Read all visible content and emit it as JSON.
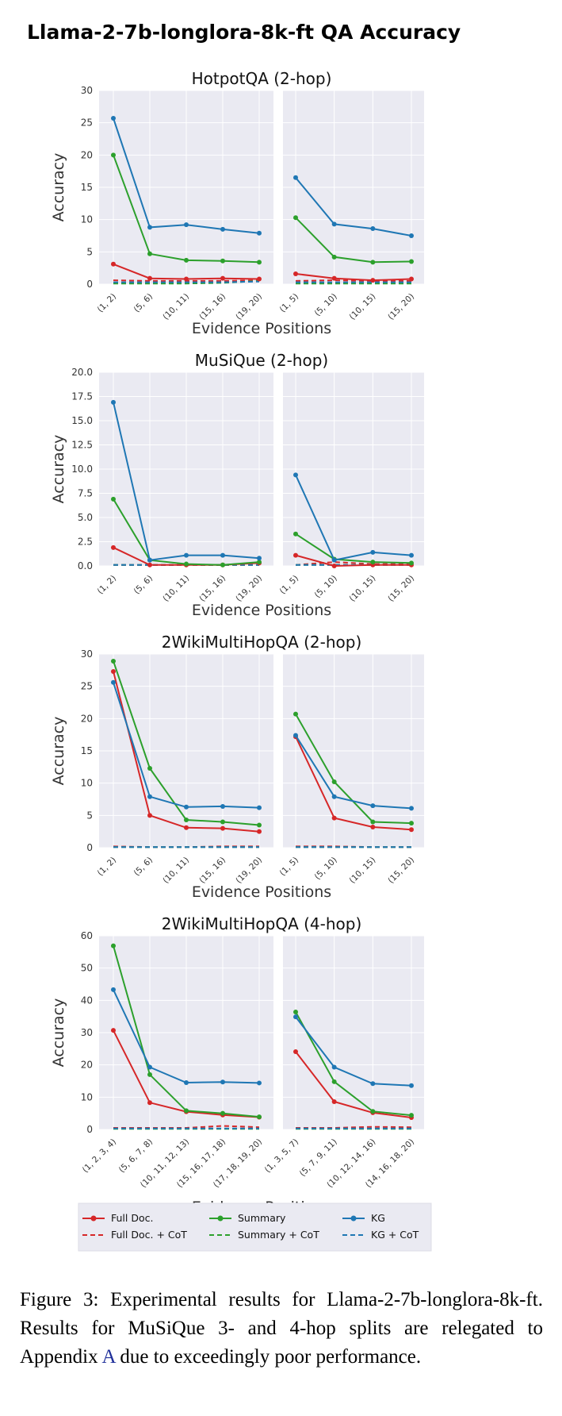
{
  "title": "Llama-2-7b-longlora-8k-ft QA Accuracy",
  "caption": {
    "text_before": "Figure 3: Experimental results for Llama-2-7b-longlora-8k-ft.  Results for MuSiQue 3- and 4-hop splits are relegated to Appendix ",
    "link": "A",
    "text_after": " due to exceedingly poor performance."
  },
  "legend": {
    "placement": "bottom",
    "entries": [
      {
        "label": "Full Doc.",
        "color": "#d62728",
        "style": "solid"
      },
      {
        "label": "Summary",
        "color": "#2ca02c",
        "style": "solid"
      },
      {
        "label": "KG",
        "color": "#1f77b4",
        "style": "solid"
      },
      {
        "label": "Full Doc. + CoT",
        "color": "#d62728",
        "style": "dashed"
      },
      {
        "label": "Summary + CoT",
        "color": "#2ca02c",
        "style": "dashed"
      },
      {
        "label": "KG + CoT",
        "color": "#1f77b4",
        "style": "dashed"
      }
    ]
  },
  "chart_data": [
    {
      "type": "line",
      "title": "HotpotQA (2-hop)",
      "ylabel": "Accuracy",
      "xlabel": "Evidence Positions",
      "ylim": [
        0,
        30
      ],
      "yticks": [
        0,
        5,
        10,
        15,
        20,
        25,
        30
      ],
      "grid": true,
      "panels": [
        {
          "categories": [
            "(1, 2)",
            "(5, 6)",
            "(10, 11)",
            "(15, 16)",
            "(19, 20)"
          ],
          "series": [
            {
              "legend": "Full Doc.",
              "values": [
                3.1,
                0.9,
                0.8,
                0.9,
                0.8
              ]
            },
            {
              "legend": "Summary",
              "values": [
                20.0,
                4.7,
                3.7,
                3.6,
                3.4
              ]
            },
            {
              "legend": "KG",
              "values": [
                25.7,
                8.8,
                9.2,
                8.5,
                7.9
              ]
            },
            {
              "legend": "Full Doc. + CoT",
              "values": [
                0.6,
                0.5,
                0.5,
                0.5,
                0.6
              ]
            },
            {
              "legend": "Summary + CoT",
              "values": [
                0.1,
                0.1,
                0.1,
                0.2,
                0.5
              ]
            },
            {
              "legend": "KG + CoT",
              "values": [
                0.3,
                0.3,
                0.3,
                0.3,
                0.4
              ]
            }
          ]
        },
        {
          "categories": [
            "(1, 5)",
            "(5, 10)",
            "(10, 15)",
            "(15, 20)"
          ],
          "series": [
            {
              "legend": "Full Doc.",
              "values": [
                1.6,
                0.9,
                0.6,
                0.8
              ]
            },
            {
              "legend": "Summary",
              "values": [
                10.3,
                4.2,
                3.4,
                3.5
              ]
            },
            {
              "legend": "KG",
              "values": [
                16.5,
                9.3,
                8.6,
                7.5
              ]
            },
            {
              "legend": "Full Doc. + CoT",
              "values": [
                0.5,
                0.6,
                0.5,
                0.5
              ]
            },
            {
              "legend": "Summary + CoT",
              "values": [
                0.1,
                0.1,
                0.1,
                0.1
              ]
            },
            {
              "legend": "KG + CoT",
              "values": [
                0.3,
                0.3,
                0.3,
                0.3
              ]
            }
          ]
        }
      ]
    },
    {
      "type": "line",
      "title": "MuSiQue (2-hop)",
      "ylabel": "Accuracy",
      "xlabel": "Evidence Positions",
      "ylim": [
        0,
        20
      ],
      "yticks": [
        0.0,
        2.5,
        5.0,
        7.5,
        10.0,
        12.5,
        15.0,
        17.5,
        20.0
      ],
      "grid": true,
      "panels": [
        {
          "categories": [
            "(1, 2)",
            "(5, 6)",
            "(10, 11)",
            "(15, 16)",
            "(19, 20)"
          ],
          "series": [
            {
              "legend": "Full Doc.",
              "values": [
                1.9,
                0.1,
                0.1,
                0.1,
                0.3
              ]
            },
            {
              "legend": "Summary",
              "values": [
                6.9,
                0.6,
                0.2,
                0.1,
                0.4
              ]
            },
            {
              "legend": "KG",
              "values": [
                16.9,
                0.6,
                1.1,
                1.1,
                0.8
              ]
            },
            {
              "legend": "Full Doc. + CoT",
              "values": [
                0.1,
                0.1,
                0.1,
                0.1,
                0.1
              ]
            },
            {
              "legend": "Summary + CoT",
              "values": [
                0.1,
                0.1,
                0.1,
                0.1,
                0.1
              ]
            },
            {
              "legend": "KG + CoT",
              "values": [
                0.1,
                0.1,
                0.1,
                0.1,
                0.1
              ]
            }
          ]
        },
        {
          "categories": [
            "(1, 5)",
            "(5, 10)",
            "(10, 15)",
            "(15, 20)"
          ],
          "series": [
            {
              "legend": "Full Doc.",
              "values": [
                1.1,
                0.0,
                0.1,
                0.1
              ]
            },
            {
              "legend": "Summary",
              "values": [
                3.3,
                0.7,
                0.4,
                0.3
              ]
            },
            {
              "legend": "KG",
              "values": [
                9.4,
                0.6,
                1.4,
                1.1
              ]
            },
            {
              "legend": "Full Doc. + CoT",
              "values": [
                0.1,
                0.4,
                0.2,
                0.2
              ]
            },
            {
              "legend": "Summary + CoT",
              "values": [
                0.1,
                0.1,
                0.1,
                0.1
              ]
            },
            {
              "legend": "KG + CoT",
              "values": [
                0.1,
                0.1,
                0.1,
                0.1
              ]
            }
          ]
        }
      ]
    },
    {
      "type": "line",
      "title": "2WikiMultiHopQA (2-hop)",
      "ylabel": "Accuracy",
      "xlabel": "Evidence Positions",
      "ylim": [
        0,
        30
      ],
      "yticks": [
        0,
        5,
        10,
        15,
        20,
        25,
        30
      ],
      "grid": true,
      "panels": [
        {
          "categories": [
            "(1, 2)",
            "(5, 6)",
            "(10, 11)",
            "(15, 16)",
            "(19, 20)"
          ],
          "series": [
            {
              "legend": "Full Doc.",
              "values": [
                27.3,
                5.0,
                3.1,
                3.0,
                2.5
              ]
            },
            {
              "legend": "Summary",
              "values": [
                28.9,
                12.3,
                4.3,
                4.0,
                3.5
              ]
            },
            {
              "legend": "KG",
              "values": [
                25.6,
                7.9,
                6.3,
                6.4,
                6.2
              ]
            },
            {
              "legend": "Full Doc. + CoT",
              "values": [
                0.2,
                0.1,
                0.1,
                0.2,
                0.2
              ]
            },
            {
              "legend": "Summary + CoT",
              "values": [
                0.1,
                0.1,
                0.1,
                0.1,
                0.1
              ]
            },
            {
              "legend": "KG + CoT",
              "values": [
                0.1,
                0.1,
                0.1,
                0.1,
                0.1
              ]
            }
          ]
        },
        {
          "categories": [
            "(1, 5)",
            "(5, 10)",
            "(10, 15)",
            "(15, 20)"
          ],
          "series": [
            {
              "legend": "Full Doc.",
              "values": [
                17.2,
                4.6,
                3.2,
                2.8
              ]
            },
            {
              "legend": "Summary",
              "values": [
                20.7,
                10.2,
                4.0,
                3.8
              ]
            },
            {
              "legend": "KG",
              "values": [
                17.4,
                7.9,
                6.5,
                6.1
              ]
            },
            {
              "legend": "Full Doc. + CoT",
              "values": [
                0.2,
                0.2,
                0.1,
                0.1
              ]
            },
            {
              "legend": "Summary + CoT",
              "values": [
                0.1,
                0.1,
                0.1,
                0.1
              ]
            },
            {
              "legend": "KG + CoT",
              "values": [
                0.1,
                0.1,
                0.1,
                0.1
              ]
            }
          ]
        }
      ]
    },
    {
      "type": "line",
      "title": "2WikiMultiHopQA (4-hop)",
      "ylabel": "Accuracy",
      "xlabel": "Evidence Positions",
      "ylim": [
        0,
        60
      ],
      "yticks": [
        0,
        10,
        20,
        30,
        40,
        50,
        60
      ],
      "grid": true,
      "panels": [
        {
          "categories": [
            "(1, 2, 3, 4)",
            "(5, 6, 7, 8)",
            "(10, 11, 12, 13)",
            "(15, 16, 17, 18)",
            "(17, 18, 19, 20)"
          ],
          "series": [
            {
              "legend": "Full Doc.",
              "values": [
                30.7,
                8.3,
                5.5,
                4.5,
                3.8
              ]
            },
            {
              "legend": "Summary",
              "values": [
                56.9,
                17.0,
                5.8,
                5.0,
                3.9
              ]
            },
            {
              "legend": "KG",
              "values": [
                43.3,
                19.3,
                14.5,
                14.7,
                14.4
              ]
            },
            {
              "legend": "Full Doc. + CoT",
              "values": [
                0.5,
                0.5,
                0.5,
                1.1,
                0.7
              ]
            },
            {
              "legend": "Summary + CoT",
              "values": [
                0.2,
                0.2,
                0.2,
                0.2,
                0.2
              ]
            },
            {
              "legend": "KG + CoT",
              "values": [
                0.3,
                0.3,
                0.3,
                0.3,
                0.3
              ]
            }
          ]
        },
        {
          "categories": [
            "(1, 3, 5, 7)",
            "(5, 7, 9, 11)",
            "(10, 12, 14, 16)",
            "(14, 16, 18, 20)"
          ],
          "series": [
            {
              "legend": "Full Doc.",
              "values": [
                24.1,
                8.6,
                5.2,
                3.7
              ]
            },
            {
              "legend": "Summary",
              "values": [
                36.4,
                14.8,
                5.6,
                4.4
              ]
            },
            {
              "legend": "KG",
              "values": [
                34.9,
                19.3,
                14.2,
                13.6
              ]
            },
            {
              "legend": "Full Doc. + CoT",
              "values": [
                0.5,
                0.5,
                0.8,
                0.7
              ]
            },
            {
              "legend": "Summary + CoT",
              "values": [
                0.2,
                0.2,
                0.2,
                0.2
              ]
            },
            {
              "legend": "KG + CoT",
              "values": [
                0.3,
                0.3,
                0.3,
                0.3
              ]
            }
          ]
        }
      ]
    }
  ]
}
